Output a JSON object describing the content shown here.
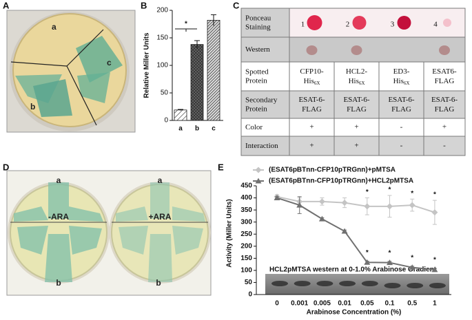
{
  "panel_labels": [
    "A",
    "B",
    "C",
    "D",
    "E"
  ],
  "photo_a": {
    "labels": [
      "a",
      "b",
      "c"
    ]
  },
  "photo_d": {
    "left": {
      "top": "a",
      "center": "-ARA",
      "bottom": "b"
    },
    "right": {
      "top": "a",
      "center": "+ARA",
      "bottom": "b"
    }
  },
  "table": {
    "row_headers": [
      "Ponceau Staining",
      "Western",
      "Spotted Protein",
      "Secondary Protein",
      "Color",
      "Interaction"
    ],
    "spot_numbers": [
      "1",
      "2",
      "3",
      "4"
    ],
    "spotted_protein": [
      {
        "text": "CFP10-His",
        "sub": "6X"
      },
      {
        "text": "HCL2-His",
        "sub": "6X"
      },
      {
        "text": "ED3-His",
        "sub": "6X"
      },
      {
        "text": "ESAT6-FLAG"
      }
    ],
    "secondary_protein": [
      "ESAT-6-FLAG",
      "ESAT-6-FLAG",
      "ESAT-6-FLAG",
      "ESAT-6-FLAG"
    ],
    "color": [
      "+",
      "+",
      "-",
      "+"
    ],
    "interaction": [
      "+",
      "+",
      "-",
      "-"
    ]
  },
  "chart_data": [
    {
      "type": "bar",
      "ylabel": "Relative Miller Units",
      "categories": [
        "a",
        "b",
        "c"
      ],
      "values": [
        19,
        138,
        182
      ],
      "errors": [
        1,
        7,
        10
      ],
      "color": "#222222",
      "ylim": [
        0,
        200
      ],
      "yticks": [
        0,
        50,
        100,
        150,
        200
      ],
      "annotation": "*"
    },
    {
      "type": "line",
      "xlabel": "Arabinose Concentration (%)",
      "ylabel": "Activity (Miller Units)",
      "categories": [
        "0",
        "0.001",
        "0.005",
        "0.01",
        "0.05",
        "0.1",
        "0.5",
        "1"
      ],
      "series": [
        {
          "name": "(ESAT6pBTnn-CFP10pTRGnn)+pMTSA",
          "color": "#c4c4c4",
          "marker": "diamond",
          "values": [
            405,
            385,
            385,
            380,
            365,
            365,
            370,
            340
          ],
          "errors": [
            8,
            15,
            15,
            20,
            35,
            45,
            25,
            50
          ],
          "star_labels": [
            null,
            null,
            null,
            null,
            "*",
            "*",
            "*",
            "*"
          ]
        },
        {
          "name": "(ESAT6pBTnn-CFP10pTRGnn)+HCL2pMTSA",
          "color": "#707070",
          "marker": "triangle",
          "values": [
            400,
            370,
            313,
            262,
            133,
            132,
            112,
            103
          ],
          "errors": [
            5,
            35,
            5,
            5,
            5,
            5,
            5,
            5
          ],
          "star_labels": [
            null,
            null,
            null,
            null,
            "*",
            "*",
            "*",
            "*"
          ]
        }
      ],
      "ylim": [
        0,
        450
      ],
      "yticks": [
        0,
        50,
        100,
        150,
        200,
        250,
        300,
        350,
        400,
        450
      ],
      "inset_label": "HCL2pMTSA western at 0-1.0% Arabinose Gradient",
      "legend": "top"
    }
  ]
}
